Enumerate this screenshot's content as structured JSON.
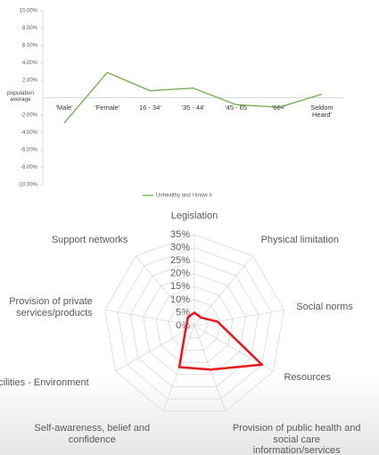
{
  "chart_data": [
    {
      "type": "line",
      "categories": [
        "'Male'",
        "'Female'",
        "16 - 34'",
        "'35 - 44'",
        "'45 - 65",
        "'66+'",
        "Seldom Heard'"
      ],
      "series": [
        {
          "name": "Unhealthy and I know it",
          "color": "#70ad47",
          "values": [
            -2.9,
            2.9,
            0.8,
            1.1,
            -0.8,
            -1.1,
            0.4
          ]
        }
      ],
      "ylim": [
        -10,
        10
      ],
      "yticks": [
        {
          "value": -10,
          "label": "-10.00%"
        },
        {
          "value": -8,
          "label": "-8.00%"
        },
        {
          "value": -6,
          "label": "-6.00%"
        },
        {
          "value": -4,
          "label": "-4.00%"
        },
        {
          "value": -2,
          "label": "-2.00%"
        },
        {
          "value": 0,
          "label": "population average"
        },
        {
          "value": 2,
          "label": "2.00%"
        },
        {
          "value": 4,
          "label": "4.00%"
        },
        {
          "value": 6,
          "label": "6.00%"
        },
        {
          "value": 8,
          "label": "8.00%"
        },
        {
          "value": 10,
          "label": "10.00%"
        }
      ]
    },
    {
      "type": "radar",
      "categories": [
        "Legislation",
        "Physical limitation",
        "Social norms",
        "Resources",
        "Provision of public health and social care information/services",
        "Self-awareness, belief and confidence",
        "Facilities - Environment",
        "Provision of private services/products",
        "Support networks"
      ],
      "values": [
        5,
        4,
        9,
        30,
        18,
        17,
        4,
        3,
        4
      ],
      "color": "#e8141c",
      "rlim": [
        0,
        35
      ],
      "rticks": [
        {
          "value": 0,
          "label": "0%"
        },
        {
          "value": 5,
          "label": "5%"
        },
        {
          "value": 10,
          "label": "10%"
        },
        {
          "value": 15,
          "label": "15%"
        },
        {
          "value": 20,
          "label": "20%"
        },
        {
          "value": 25,
          "label": "25%"
        },
        {
          "value": 30,
          "label": "30%"
        },
        {
          "value": 35,
          "label": "35%"
        }
      ]
    }
  ]
}
